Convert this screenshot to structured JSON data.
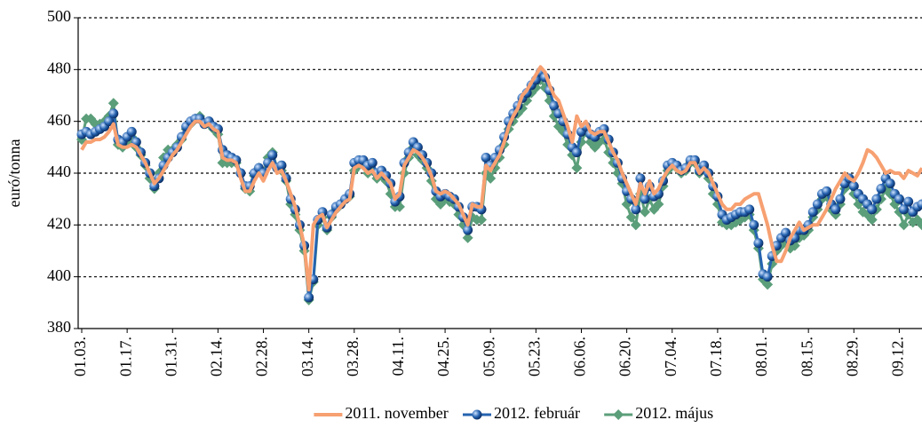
{
  "chart_data": {
    "type": "line",
    "ylabel": "euró/tonna",
    "categories": [
      "01.03.",
      null,
      null,
      null,
      null,
      null,
      null,
      null,
      null,
      null,
      "01.17.",
      null,
      null,
      null,
      null,
      null,
      null,
      null,
      null,
      null,
      "01.31.",
      null,
      null,
      null,
      null,
      null,
      null,
      null,
      null,
      null,
      "02.14.",
      null,
      null,
      null,
      null,
      null,
      null,
      null,
      null,
      null,
      "02.28.",
      null,
      null,
      null,
      null,
      null,
      null,
      null,
      null,
      null,
      "03.14.",
      null,
      null,
      null,
      null,
      null,
      null,
      null,
      null,
      null,
      "03.28.",
      null,
      null,
      null,
      null,
      null,
      null,
      null,
      null,
      null,
      "04.11.",
      null,
      null,
      null,
      null,
      null,
      null,
      null,
      null,
      null,
      "04.25.",
      null,
      null,
      null,
      null,
      null,
      null,
      null,
      null,
      null,
      "05.09.",
      null,
      null,
      null,
      null,
      null,
      null,
      null,
      null,
      null,
      "05.23.",
      null,
      null,
      null,
      null,
      null,
      null,
      null,
      null,
      null,
      "06.06.",
      null,
      null,
      null,
      null,
      null,
      null,
      null,
      null,
      null,
      "06.20.",
      null,
      null,
      null,
      null,
      null,
      null,
      null,
      null,
      null,
      "07.04.",
      null,
      null,
      null,
      null,
      null,
      null,
      null,
      null,
      null,
      "07.18.",
      null,
      null,
      null,
      null,
      null,
      null,
      null,
      null,
      null,
      "08.01.",
      null,
      null,
      null,
      null,
      null,
      null,
      null,
      null,
      null,
      "08.15.",
      null,
      null,
      null,
      null,
      null,
      null,
      null,
      null,
      null,
      "08.29.",
      null,
      null,
      null,
      null,
      null,
      null,
      null,
      null,
      null,
      "09.12.",
      null,
      null,
      null,
      null,
      null
    ],
    "series": [
      {
        "name": "2011. november",
        "color": "#f7a071",
        "marker": "none",
        "values": [
          449,
          452,
          452,
          453,
          453,
          454,
          456,
          459,
          451,
          450,
          450,
          451,
          450,
          447,
          444,
          440,
          436,
          438,
          441,
          444,
          447,
          449,
          452,
          455,
          458,
          460,
          460,
          458,
          459,
          457,
          456,
          446,
          445,
          445,
          444,
          438,
          433,
          433,
          437,
          440,
          437,
          441,
          444,
          440,
          441,
          437,
          432,
          427,
          420,
          412,
          395,
          420,
          423,
          424,
          419,
          422,
          425,
          427,
          429,
          430,
          442,
          443,
          442,
          440,
          441,
          438,
          440,
          438,
          436,
          430,
          432,
          443,
          446,
          449,
          448,
          446,
          443,
          439,
          433,
          432,
          433,
          432,
          430,
          428,
          424,
          420,
          428,
          427,
          427,
          443,
          441,
          444,
          447,
          452,
          458,
          462,
          465,
          470,
          472,
          475,
          478,
          481,
          479,
          474,
          470,
          468,
          463,
          458,
          452,
          462,
          458,
          460,
          456,
          455,
          456,
          456,
          452,
          448,
          445,
          440,
          436,
          432,
          428,
          436,
          432,
          437,
          432,
          434,
          438,
          441,
          443,
          441,
          440,
          441,
          444,
          444,
          440,
          442,
          440,
          436,
          432,
          428,
          426,
          426,
          428,
          428,
          430,
          431,
          432,
          432,
          426,
          420,
          412,
          406,
          406,
          410,
          415,
          418,
          421,
          418,
          419,
          420,
          420,
          423,
          426,
          430,
          434,
          437,
          440,
          438,
          437,
          440,
          444,
          449,
          448,
          446,
          443,
          440,
          441,
          440,
          440,
          438,
          441,
          440,
          439,
          442
        ]
      },
      {
        "name": "2012. február",
        "color": "#2563b0",
        "marker": "circle",
        "values": [
          455,
          456,
          455,
          456,
          457,
          458,
          460,
          463,
          453,
          452,
          454,
          456,
          452,
          448,
          444,
          440,
          435,
          438,
          443,
          446,
          448,
          450,
          454,
          458,
          460,
          461,
          461,
          459,
          460,
          458,
          457,
          449,
          447,
          446,
          445,
          440,
          435,
          435,
          440,
          442,
          440,
          444,
          447,
          442,
          443,
          438,
          430,
          426,
          420,
          412,
          392,
          399,
          422,
          425,
          419,
          424,
          427,
          428,
          430,
          432,
          444,
          445,
          445,
          443,
          444,
          440,
          441,
          439,
          436,
          429,
          431,
          444,
          448,
          452,
          450,
          447,
          444,
          440,
          433,
          431,
          432,
          431,
          430,
          427,
          423,
          418,
          427,
          427,
          426,
          446,
          443,
          446,
          449,
          454,
          460,
          463,
          466,
          469,
          471,
          474,
          476,
          479,
          477,
          472,
          466,
          463,
          460,
          455,
          450,
          448,
          456,
          458,
          455,
          454,
          456,
          457,
          453,
          448,
          444,
          438,
          433,
          430,
          426,
          438,
          430,
          435,
          431,
          432,
          437,
          443,
          444,
          443,
          441,
          442,
          445,
          445,
          441,
          443,
          440,
          435,
          431,
          424,
          422,
          423,
          424,
          425,
          425,
          426,
          420,
          413,
          401,
          400,
          408,
          412,
          415,
          417,
          414,
          415,
          418,
          418,
          420,
          425,
          428,
          432,
          433,
          428,
          426,
          430,
          436,
          438,
          435,
          432,
          430,
          428,
          426,
          430,
          434,
          438,
          436,
          432,
          430,
          426,
          429,
          425,
          427,
          428
        ]
      },
      {
        "name": "2012. május",
        "color": "#5b9e7a",
        "marker": "diamond",
        "values": [
          453,
          461,
          461,
          459,
          459,
          460,
          462,
          467,
          451,
          450,
          452,
          454,
          450,
          447,
          443,
          438,
          434,
          440,
          446,
          449,
          449,
          451,
          453,
          457,
          459,
          461,
          462,
          459,
          459,
          457,
          455,
          444,
          444,
          444,
          444,
          440,
          434,
          433,
          439,
          442,
          440,
          446,
          448,
          442,
          441,
          437,
          428,
          424,
          418,
          410,
          391,
          398,
          420,
          423,
          418,
          423,
          426,
          428,
          430,
          431,
          441,
          443,
          443,
          440,
          441,
          438,
          439,
          437,
          432,
          427,
          427,
          440,
          446,
          450,
          447,
          445,
          442,
          437,
          430,
          428,
          430,
          429,
          428,
          424,
          420,
          415,
          423,
          422,
          422,
          440,
          438,
          442,
          446,
          451,
          457,
          460,
          463,
          465,
          468,
          471,
          473,
          476,
          473,
          468,
          462,
          458,
          456,
          451,
          447,
          442,
          452,
          456,
          452,
          450,
          452,
          453,
          448,
          444,
          440,
          436,
          428,
          423,
          420,
          432,
          425,
          430,
          426,
          428,
          435,
          441,
          443,
          442,
          440,
          441,
          444,
          444,
          440,
          442,
          438,
          432,
          428,
          421,
          420,
          420,
          421,
          422,
          423,
          424,
          418,
          411,
          399,
          397,
          405,
          410,
          412,
          414,
          411,
          412,
          415,
          416,
          418,
          423,
          426,
          430,
          431,
          426,
          424,
          428,
          434,
          436,
          432,
          428,
          425,
          424,
          422,
          426,
          430,
          434,
          432,
          428,
          425,
          420,
          424,
          421,
          422,
          420
        ]
      }
    ],
    "ylim": [
      380,
      500
    ],
    "yticks": [
      380,
      400,
      420,
      440,
      460,
      480,
      500
    ],
    "grid": true,
    "legend": "bottom"
  }
}
